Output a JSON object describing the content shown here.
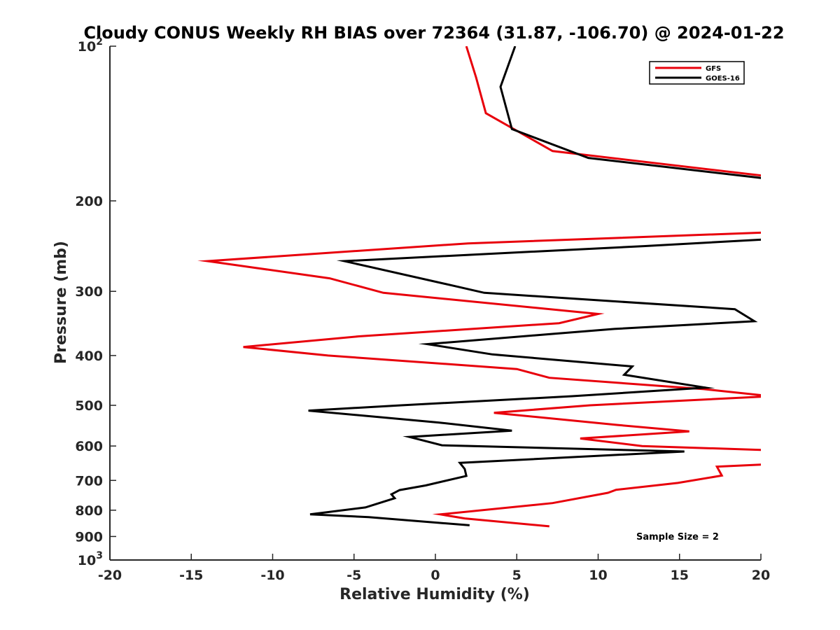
{
  "chart_data": {
    "type": "line",
    "title": "Cloudy CONUS Weekly RH BIAS over 72364 (31.87, -106.70) @ 2024-01-22",
    "xlabel": "Relative Humidity (%)",
    "ylabel": "Pressure (mb)",
    "xlim": [
      -20,
      20
    ],
    "ylim": [
      100,
      1000
    ],
    "yscale": "log",
    "y_reversed": true,
    "grid": false,
    "legend_position": "top-right",
    "x_ticks": [
      -20,
      -15,
      -10,
      -5,
      0,
      5,
      10,
      15,
      20
    ],
    "y_ticks": [
      {
        "value": 100,
        "base": "10",
        "exp": "2"
      },
      {
        "value": 200,
        "label": "200"
      },
      {
        "value": 300,
        "label": "300"
      },
      {
        "value": 400,
        "label": "400"
      },
      {
        "value": 500,
        "label": "500"
      },
      {
        "value": 600,
        "label": "600"
      },
      {
        "value": 700,
        "label": "700"
      },
      {
        "value": 800,
        "label": "800"
      },
      {
        "value": 900,
        "label": "900"
      },
      {
        "value": 1000,
        "base": "10",
        "exp": "3"
      }
    ],
    "series": [
      {
        "name": "GFS",
        "color": "#e8000b",
        "points": [
          [
            1.9,
            100
          ],
          [
            2.5,
            115
          ],
          [
            3.1,
            135
          ],
          [
            7.2,
            160
          ],
          [
            21,
            180
          ],
          [
            21,
            230
          ],
          [
            2,
            242
          ],
          [
            -14,
            262
          ],
          [
            -6.5,
            283
          ],
          [
            -3.2,
            302
          ],
          [
            10.0,
            332
          ],
          [
            7.6,
            346
          ],
          [
            -4.7,
            367
          ],
          [
            -11.8,
            385
          ],
          [
            -6.6,
            400
          ],
          [
            5,
            425
          ],
          [
            7,
            442
          ],
          [
            16.5,
            465
          ],
          [
            20.6,
            480
          ],
          [
            9.5,
            500
          ],
          [
            3.6,
            517
          ],
          [
            11.2,
            546
          ],
          [
            15.6,
            562
          ],
          [
            8.9,
            580
          ],
          [
            12.7,
            600
          ],
          [
            21,
            612
          ],
          [
            21,
            650
          ],
          [
            17.3,
            658
          ],
          [
            17.6,
            685
          ],
          [
            14.9,
            708
          ],
          [
            11.1,
            730
          ],
          [
            10.6,
            740
          ],
          [
            7.2,
            775
          ],
          [
            0.3,
            815
          ],
          [
            1.8,
            830
          ],
          [
            7.0,
            860
          ]
        ]
      },
      {
        "name": "GOES-16",
        "color": "#000000",
        "points": [
          [
            4.9,
            100
          ],
          [
            4.0,
            120
          ],
          [
            4.7,
            145
          ],
          [
            9.4,
            165
          ],
          [
            21,
            182
          ],
          [
            21,
            237
          ],
          [
            12.8,
            245
          ],
          [
            -5.6,
            262
          ],
          [
            1.2,
            293
          ],
          [
            3.0,
            302
          ],
          [
            18.4,
            325
          ],
          [
            19.6,
            343
          ],
          [
            11.0,
            355
          ],
          [
            7.2,
            363
          ],
          [
            -0.5,
            380
          ],
          [
            3.5,
            398
          ],
          [
            12.1,
            420
          ],
          [
            11.6,
            436
          ],
          [
            16.6,
            462
          ],
          [
            8.4,
            480
          ],
          [
            -2.1,
            500
          ],
          [
            -7.8,
            512
          ],
          [
            0.2,
            540
          ],
          [
            4.7,
            560
          ],
          [
            -1.6,
            576
          ],
          [
            0.4,
            598
          ],
          [
            15.3,
            615
          ],
          [
            1.5,
            647
          ],
          [
            1.8,
            665
          ],
          [
            1.9,
            686
          ],
          [
            -0.6,
            716
          ],
          [
            -2.2,
            731
          ],
          [
            -2.7,
            745
          ],
          [
            -2.5,
            758
          ],
          [
            -4.3,
            790
          ],
          [
            -7.7,
            815
          ],
          [
            -4.1,
            825
          ],
          [
            2.1,
            856
          ]
        ]
      }
    ],
    "annotations": [
      {
        "text": "Sample Size = 2",
        "position": "bottom-right"
      }
    ]
  }
}
